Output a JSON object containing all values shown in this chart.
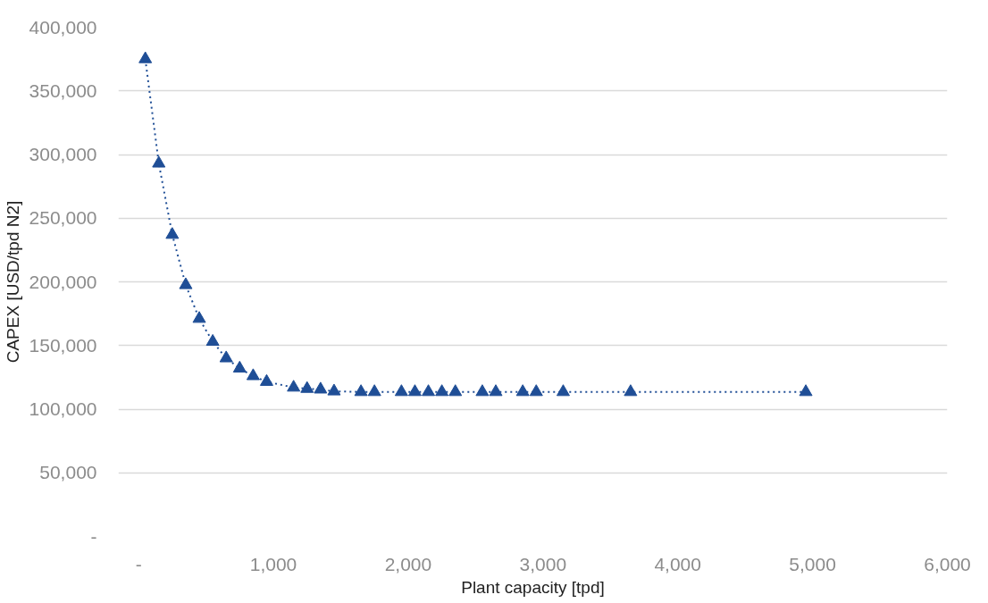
{
  "chart_data": {
    "type": "line",
    "xlabel": "Plant capacity [tpd]",
    "ylabel": "CAPEX [USD/tpd N2]",
    "x": [
      50,
      150,
      250,
      350,
      450,
      550,
      650,
      750,
      850,
      950,
      1150,
      1250,
      1350,
      1450,
      1650,
      1750,
      1950,
      2050,
      2150,
      2250,
      2350,
      2550,
      2650,
      2850,
      2950,
      3150,
      3650,
      4950
    ],
    "series": [
      {
        "color": "#1f4e96",
        "values": [
          375000,
          293000,
          237000,
          197500,
          171000,
          153000,
          140000,
          132000,
          126000,
          121500,
          117000,
          116000,
          115500,
          114000,
          113500,
          113500,
          113500,
          113500,
          113500,
          113500,
          113500,
          113500,
          113500,
          113500,
          113500,
          113500,
          113500,
          113500
        ]
      }
    ],
    "xlim": [
      -150,
      6000
    ],
    "ylim": [
      0,
      400000
    ],
    "xticks": [
      {
        "value": 0,
        "label": "-"
      },
      {
        "value": 1000,
        "label": "1,000"
      },
      {
        "value": 2000,
        "label": "2,000"
      },
      {
        "value": 3000,
        "label": "3,000"
      },
      {
        "value": 4000,
        "label": "4,000"
      },
      {
        "value": 5000,
        "label": "5,000"
      },
      {
        "value": 6000,
        "label": "6,000"
      }
    ],
    "yticks": [
      {
        "value": 0,
        "label": "-"
      },
      {
        "value": 50000,
        "label": "50,000"
      },
      {
        "value": 100000,
        "label": "100,000"
      },
      {
        "value": 150000,
        "label": "150,000"
      },
      {
        "value": 200000,
        "label": "200,000"
      },
      {
        "value": 250000,
        "label": "250,000"
      },
      {
        "value": 300000,
        "label": "300,000"
      },
      {
        "value": 350000,
        "label": "350,000"
      },
      {
        "value": 400000,
        "label": "400,000"
      }
    ],
    "grid": "y",
    "marker": "triangle",
    "line_style": "dotted"
  }
}
